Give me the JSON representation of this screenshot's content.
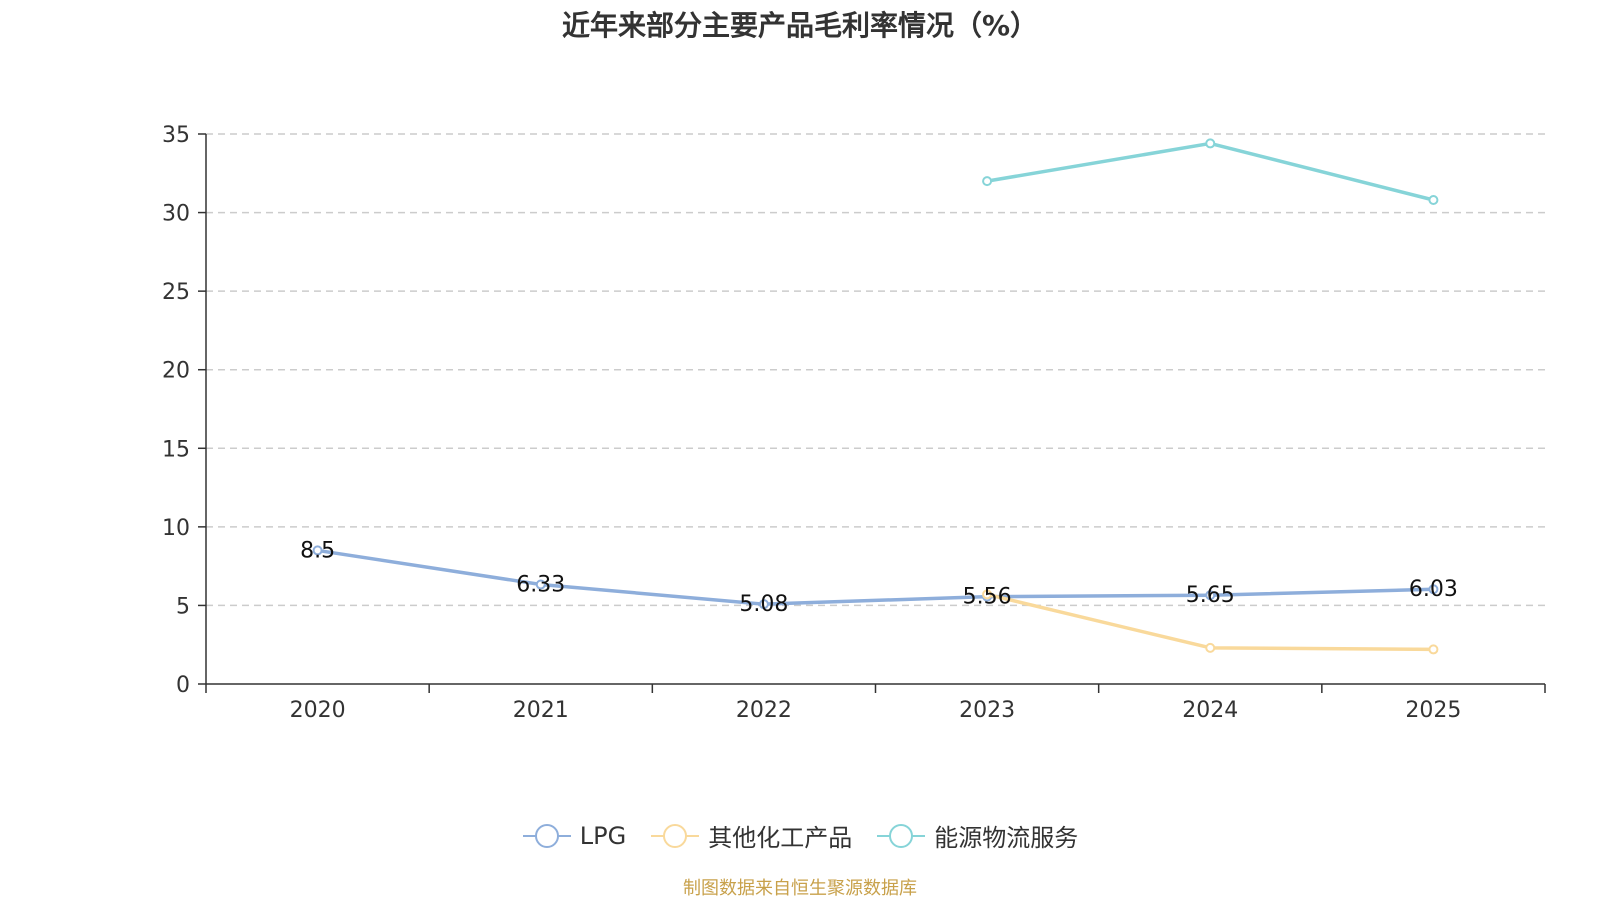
{
  "chart_data": {
    "type": "line",
    "title": "近年来部分主要产品毛利率情况（%）",
    "xlabel": "",
    "ylabel": "",
    "ylim": [
      0,
      35
    ],
    "yticks": [
      0,
      5,
      10,
      15,
      20,
      25,
      30,
      35
    ],
    "categories": [
      "2020",
      "2021",
      "2022",
      "2023",
      "2024",
      "2025"
    ],
    "grid": true,
    "legend_position": "bottom-center",
    "series": [
      {
        "name": "LPG",
        "color": "#8eaedb",
        "values": [
          8.5,
          6.33,
          5.08,
          5.56,
          5.65,
          6.03
        ],
        "labels": [
          "8.5",
          "6.33",
          "5.08",
          "5.56",
          "5.65",
          "6.03"
        ],
        "show_labels": true
      },
      {
        "name": "其他化工产品",
        "color": "#f9d99b",
        "values": [
          null,
          null,
          null,
          5.7,
          2.3,
          2.2
        ],
        "show_labels": false
      },
      {
        "name": "能源物流服务",
        "color": "#86d4d8",
        "values": [
          null,
          null,
          null,
          32.0,
          34.4,
          30.8
        ],
        "show_labels": false
      }
    ]
  },
  "source_note": "制图数据来自恒生聚源数据库"
}
